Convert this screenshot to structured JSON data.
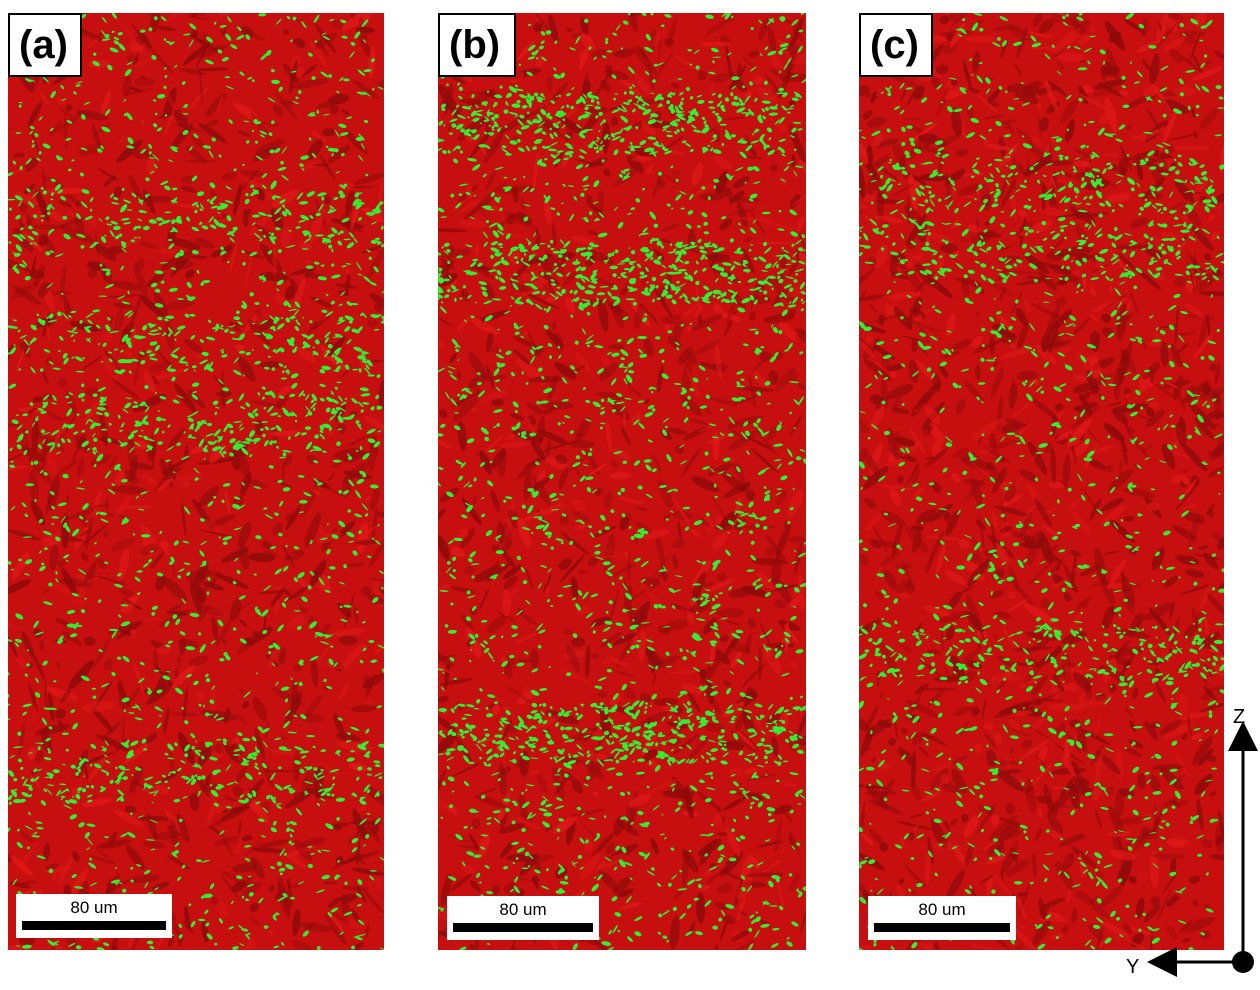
{
  "panels": [
    {
      "label": "(a)",
      "scale_bar": "80 um"
    },
    {
      "label": "(b)",
      "scale_bar": "80 um"
    },
    {
      "label": "(c)",
      "scale_bar": "80 um"
    }
  ],
  "axes": {
    "vertical": "Z",
    "horizontal": "Y"
  },
  "colors": {
    "phase_red": "#c80f0f",
    "phase_dark_red": "#8e0a0a",
    "phase_green": "#33ee33",
    "scale_bar": "#000000"
  }
}
